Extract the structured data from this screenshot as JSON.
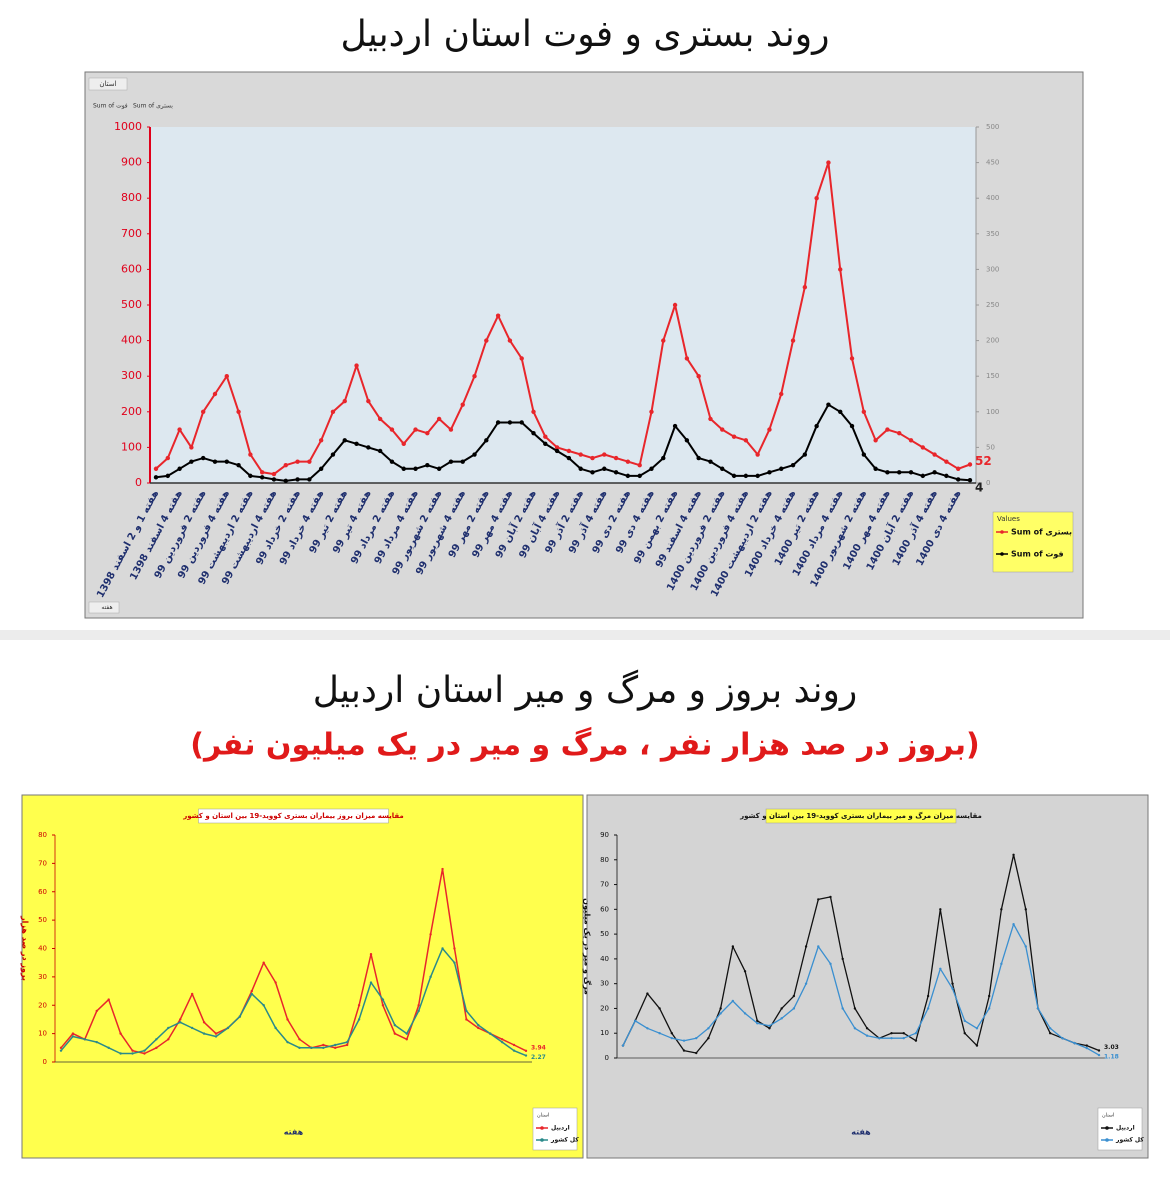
{
  "section2": {
    "title": "روند بروز و مرگ و میر استان اردبیل",
    "subtitle": "(بروز در صد هزار نفر ، مرگ و میر در یک میلیون نفر)"
  },
  "chart_data": [
    {
      "type": "line",
      "title": "روند بستری و فوت استان اردبیل",
      "filter_button": "استان",
      "axis_button": "هفته",
      "legend_title": "Values",
      "legend": "right",
      "end_labels": true,
      "grid": false,
      "categories": [
        "هفته 1 و 2 اسفند 1398",
        null,
        "هفته 4 اسفند 1398",
        null,
        "هفته 2 فروردین 99",
        null,
        "هفته 4 فروردین 99",
        null,
        "هفته 2 اردیبهشت 99",
        null,
        "هفته 4 اردیبهشت 99",
        null,
        "هفته 2 خرداد 99",
        null,
        "هفته 4 خرداد 99",
        null,
        "هفته 2 تیر 99",
        null,
        "هفته 4 تیر 99",
        null,
        "هفته 2 مرداد 99",
        null,
        "هفته 4 مرداد 99",
        null,
        "هفته 2 شهریور 99",
        null,
        "هفته 4 شهریور 99",
        null,
        "هفته 2 مهر 99",
        null,
        "هفته 4 مهر 99",
        null,
        "هفته 2 آبان 99",
        null,
        "هفته 4 آبان 99",
        null,
        "هفته 2 آذر 99",
        null,
        "هفته 4 آذر 99",
        null,
        "هفته 2 دی 99",
        null,
        "هفته 4 دی 99",
        null,
        "هفته 2 بهمن 99",
        null,
        "هفته 4 اسفند 99",
        null,
        "هفته 2 فروردین 1400",
        null,
        "هفته 4 فروردین 1400",
        null,
        "هفته 2 اردیبهشت 1400",
        null,
        "هفته 4 خرداد 1400",
        null,
        "هفته 2 تیر 1400",
        null,
        "هفته 4 مرداد 1400",
        null,
        "هفته 2 شهریور 1400",
        null,
        "هفته 4 مهر 1400",
        null,
        "هفته 2 آبان 1400",
        null,
        "هفته 4 آذر 1400",
        null,
        "هفته 4 دی 1400",
        null
      ],
      "series": [
        {
          "name": "Sum of بستری",
          "color": "#e8262b",
          "axis": "y",
          "values": [
            40,
            70,
            150,
            100,
            200,
            250,
            300,
            200,
            80,
            30,
            25,
            50,
            60,
            60,
            120,
            200,
            230,
            330,
            230,
            180,
            150,
            110,
            150,
            140,
            180,
            150,
            220,
            300,
            400,
            470,
            400,
            350,
            200,
            130,
            100,
            90,
            80,
            70,
            80,
            70,
            60,
            50,
            200,
            400,
            500,
            350,
            300,
            180,
            150,
            130,
            120,
            80,
            150,
            250,
            400,
            550,
            800,
            900,
            600,
            350,
            200,
            120,
            150,
            140,
            120,
            100,
            80,
            60,
            40,
            52
          ]
        },
        {
          "name": "Sum of فوت",
          "color": "#000000",
          "axis": "y2",
          "values": [
            8,
            10,
            20,
            30,
            35,
            30,
            30,
            25,
            10,
            8,
            5,
            3,
            5,
            5,
            20,
            40,
            60,
            55,
            50,
            45,
            30,
            20,
            20,
            25,
            20,
            30,
            30,
            40,
            60,
            85,
            85,
            85,
            70,
            55,
            45,
            35,
            20,
            15,
            20,
            15,
            10,
            10,
            20,
            35,
            80,
            60,
            35,
            30,
            20,
            10,
            10,
            10,
            15,
            20,
            25,
            40,
            80,
            110,
            100,
            80,
            40,
            20,
            15,
            15,
            15,
            10,
            15,
            10,
            5,
            4
          ]
        }
      ],
      "ylim": [
        0,
        1000
      ],
      "yticks": [
        0,
        100,
        200,
        300,
        400,
        500,
        600,
        700,
        800,
        900,
        1000
      ],
      "y2lim": [
        0,
        500
      ],
      "y2ticks": [
        0,
        50,
        100,
        150,
        200,
        250,
        300,
        350,
        400,
        450,
        500
      ]
    },
    {
      "type": "line",
      "title": "مقایسه میزان بروز بیماران بستری کووید-19 بین استان و کشور",
      "ylabel": "بروز در صد هزار",
      "xlabel": "هفته",
      "legend_title": "استان",
      "legend": "bottom-right",
      "end_labels": true,
      "background": "#ffff4d",
      "categories": [
        null,
        null,
        null,
        null,
        null,
        null,
        null,
        null,
        null,
        null,
        null,
        null,
        null,
        null,
        null,
        null,
        null,
        null,
        null,
        null,
        null,
        null,
        null,
        null,
        null,
        null,
        null,
        null,
        null,
        null,
        null,
        null,
        null,
        null,
        null,
        null,
        null,
        null,
        null,
        null
      ],
      "series": [
        {
          "name": "اردبیل",
          "color": "#e8262b",
          "values": [
            5,
            10,
            8,
            18,
            22,
            10,
            4,
            3,
            5,
            8,
            15,
            24,
            14,
            10,
            12,
            16,
            25,
            35,
            28,
            15,
            8,
            5,
            6,
            5,
            6,
            20,
            38,
            20,
            10,
            8,
            20,
            45,
            68,
            40,
            15,
            12,
            10,
            8,
            6,
            3.94
          ]
        },
        {
          "name": "کل کشور",
          "color": "#2a8a8a",
          "values": [
            4,
            9,
            8,
            7,
            5,
            3,
            3,
            4,
            8,
            12,
            14,
            12,
            10,
            9,
            12,
            16,
            24,
            20,
            12,
            7,
            5,
            5,
            5,
            6,
            7,
            15,
            28,
            22,
            13,
            10,
            18,
            30,
            40,
            35,
            18,
            13,
            10,
            7,
            4,
            2.27
          ]
        }
      ],
      "ylim": [
        0,
        80
      ],
      "yticks": [
        0,
        10,
        20,
        30,
        40,
        50,
        60,
        70,
        80
      ]
    },
    {
      "type": "line",
      "title": "مقایسه میزان مرگ و میر بیماران بستری کووید-19 بین استان و کشور",
      "ylabel": "مرگ و میر در یک میلیون",
      "xlabel": "هفته",
      "legend_title": "استان",
      "legend": "bottom-right",
      "end_labels": true,
      "background": "#d4d4d4",
      "categories": [
        null,
        null,
        null,
        null,
        null,
        null,
        null,
        null,
        null,
        null,
        null,
        null,
        null,
        null,
        null,
        null,
        null,
        null,
        null,
        null,
        null,
        null,
        null,
        null,
        null,
        null,
        null,
        null,
        null,
        null,
        null,
        null,
        null,
        null,
        null,
        null,
        null,
        null,
        null,
        null
      ],
      "series": [
        {
          "name": "اردبیل",
          "color": "#111111",
          "values": [
            5,
            15,
            26,
            20,
            10,
            3,
            2,
            8,
            20,
            45,
            35,
            15,
            12,
            20,
            25,
            45,
            64,
            65,
            40,
            20,
            12,
            8,
            10,
            10,
            7,
            25,
            60,
            30,
            10,
            5,
            25,
            60,
            82,
            60,
            20,
            10,
            8,
            6,
            5,
            3.03
          ]
        },
        {
          "name": "کل کشور",
          "color": "#3a8fd0",
          "values": [
            5,
            15,
            12,
            10,
            8,
            7,
            8,
            12,
            18,
            23,
            18,
            14,
            13,
            16,
            20,
            30,
            45,
            38,
            20,
            12,
            9,
            8,
            8,
            8,
            10,
            20,
            36,
            28,
            15,
            12,
            20,
            38,
            54,
            45,
            20,
            12,
            8,
            6,
            4,
            1.18
          ]
        }
      ],
      "ylim": [
        0,
        90
      ],
      "yticks": [
        0,
        10,
        20,
        30,
        40,
        50,
        60,
        70,
        80,
        90
      ]
    }
  ]
}
